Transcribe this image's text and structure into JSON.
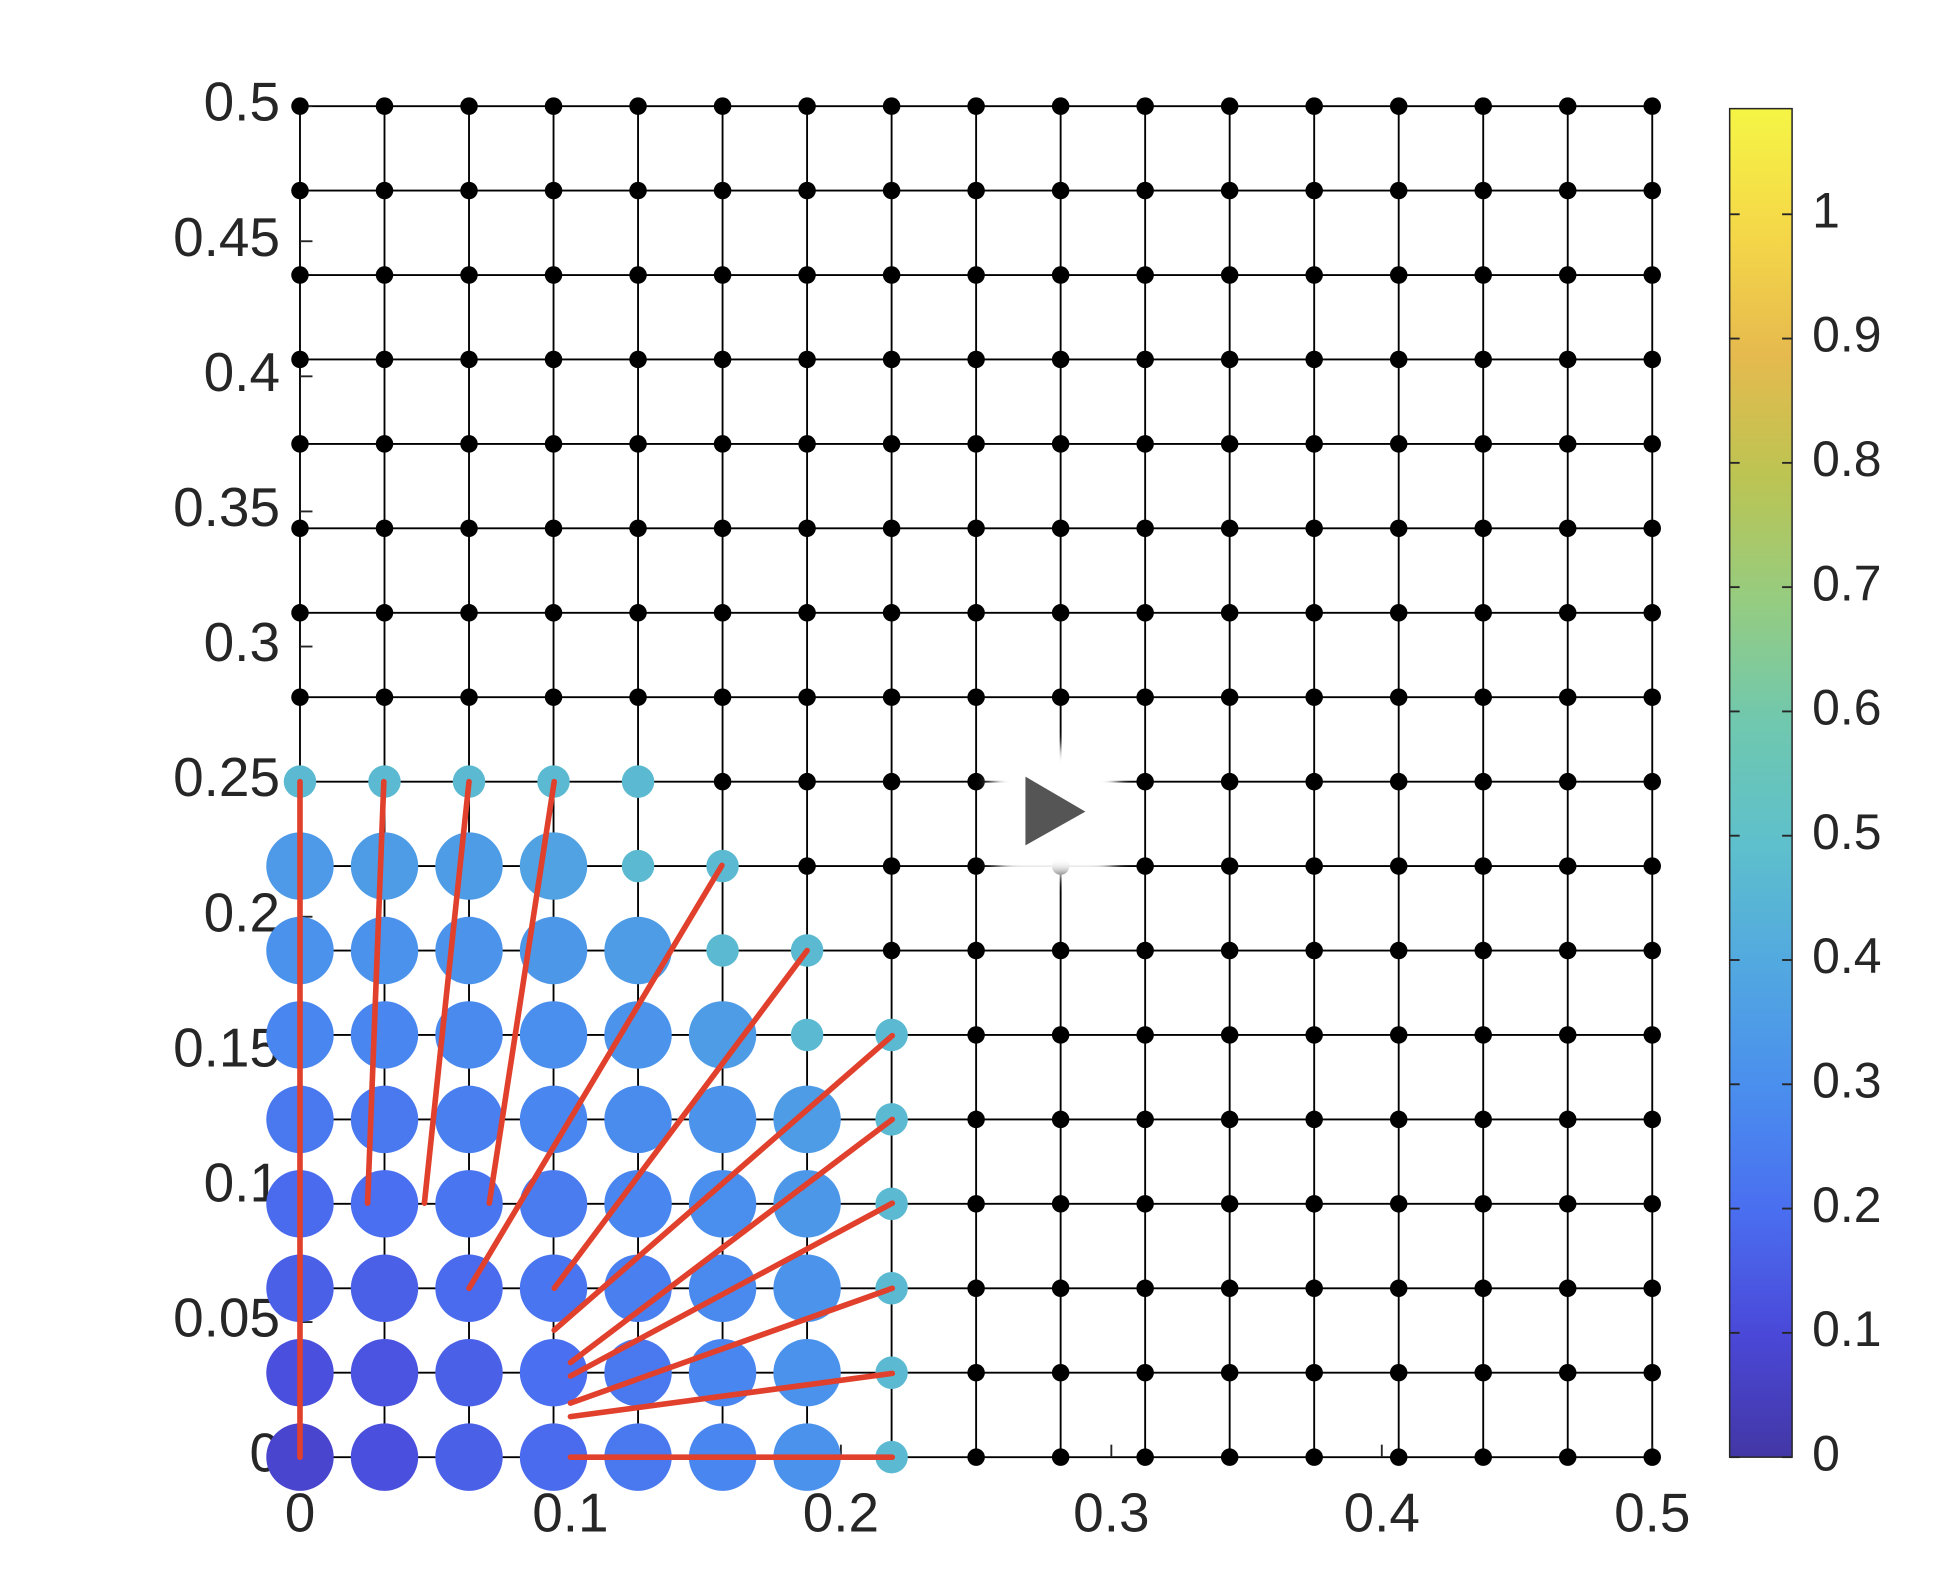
{
  "chart_data": {
    "type": "scatter",
    "xlim": [
      0,
      0.5
    ],
    "ylim": [
      0,
      0.5
    ],
    "xticks": [
      0,
      0.1,
      0.2,
      0.3,
      0.4,
      0.5
    ],
    "yticks": [
      0,
      0.05,
      0.1,
      0.15,
      0.2,
      0.25,
      0.3,
      0.35,
      0.4,
      0.45,
      0.5
    ],
    "mesh": {
      "x": [
        0,
        0.03125,
        0.0625,
        0.09375,
        0.125,
        0.15625,
        0.1875,
        0.21875,
        0.25,
        0.28125,
        0.3125,
        0.34375,
        0.375,
        0.40625,
        0.4375,
        0.46875,
        0.5
      ],
      "y": [
        0,
        0.03125,
        0.0625,
        0.09375,
        0.125,
        0.15625,
        0.1875,
        0.21875,
        0.25,
        0.28125,
        0.3125,
        0.34375,
        0.375,
        0.40625,
        0.4375,
        0.46875,
        0.5
      ],
      "color": "#000000"
    },
    "series": [
      {
        "x": [
          0,
          0.03125,
          0.0625,
          0.09375,
          0.125,
          0.15625,
          0.1875,
          0,
          0.03125,
          0.0625,
          0.09375,
          0.125,
          0.15625,
          0.1875,
          0,
          0.03125,
          0.0625,
          0.09375,
          0.125,
          0.15625,
          0.1875,
          0,
          0.03125,
          0.0625,
          0.09375,
          0.125,
          0.15625,
          0.1875,
          0,
          0.03125,
          0.0625,
          0.09375,
          0.125,
          0.15625,
          0.1875,
          0,
          0.03125,
          0.0625,
          0.09375,
          0.125,
          0.15625,
          0,
          0.03125,
          0.0625,
          0.09375,
          0.125,
          0,
          0.03125,
          0.0625,
          0.09375
        ],
        "y": [
          0,
          0,
          0,
          0,
          0,
          0,
          0,
          0.03125,
          0.03125,
          0.03125,
          0.03125,
          0.03125,
          0.03125,
          0.03125,
          0.0625,
          0.0625,
          0.0625,
          0.0625,
          0.0625,
          0.0625,
          0.0625,
          0.09375,
          0.09375,
          0.09375,
          0.09375,
          0.09375,
          0.09375,
          0.09375,
          0.125,
          0.125,
          0.125,
          0.125,
          0.125,
          0.125,
          0.125,
          0.15625,
          0.15625,
          0.15625,
          0.15625,
          0.15625,
          0.15625,
          0.1875,
          0.1875,
          0.1875,
          0.1875,
          0.1875,
          0.21875,
          0.21875,
          0.21875,
          0.21875
        ],
        "values": [
          0.08,
          0.12,
          0.16,
          0.19,
          0.23,
          0.27,
          0.31,
          0.12,
          0.13,
          0.16,
          0.2,
          0.23,
          0.27,
          0.31,
          0.16,
          0.16,
          0.19,
          0.22,
          0.25,
          0.28,
          0.32,
          0.19,
          0.2,
          0.22,
          0.24,
          0.27,
          0.3,
          0.33,
          0.23,
          0.23,
          0.25,
          0.27,
          0.29,
          0.32,
          0.35,
          0.27,
          0.27,
          0.28,
          0.3,
          0.32,
          0.35,
          0.31,
          0.31,
          0.32,
          0.33,
          0.35,
          0.34,
          0.35,
          0.35,
          0.37
        ]
      },
      {
        "x": [
          0.21875,
          0.21875,
          0.21875,
          0.21875,
          0.21875,
          0.1875,
          0.21875,
          0.15625,
          0.1875,
          0.125,
          0.15625,
          0,
          0.03125,
          0.0625,
          0.09375,
          0.125
        ],
        "y": [
          0,
          0.03125,
          0.0625,
          0.09375,
          0.125,
          0.15625,
          0.15625,
          0.1875,
          0.1875,
          0.21875,
          0.21875,
          0.25,
          0.25,
          0.25,
          0.25,
          0.25
        ],
        "values": [
          0.47,
          0.47,
          0.47,
          0.47,
          0.47,
          0.47,
          0.47,
          0.47,
          0.47,
          0.47,
          0.47,
          0.47,
          0.47,
          0.47,
          0.47,
          0.47
        ]
      }
    ],
    "lines": [
      {
        "x": [
          0,
          0
        ],
        "y": [
          0,
          0.25
        ]
      },
      {
        "x": [
          0.025,
          0.031
        ],
        "y": [
          0.094,
          0.25
        ]
      },
      {
        "x": [
          0.046,
          0.0625
        ],
        "y": [
          0.094,
          0.25
        ]
      },
      {
        "x": [
          0.07,
          0.094
        ],
        "y": [
          0.094,
          0.25
        ]
      },
      {
        "x": [
          0.0625,
          0.156
        ],
        "y": [
          0.0625,
          0.219
        ]
      },
      {
        "x": [
          0.094,
          0.1875
        ],
        "y": [
          0.0625,
          0.1875
        ]
      },
      {
        "x": [
          0.094,
          0.219
        ],
        "y": [
          0.047,
          0.156
        ]
      },
      {
        "x": [
          0.1,
          0.219
        ],
        "y": [
          0.035,
          0.125
        ]
      },
      {
        "x": [
          0.1,
          0.219
        ],
        "y": [
          0.03,
          0.094
        ]
      },
      {
        "x": [
          0.1,
          0.219
        ],
        "y": [
          0.02,
          0.0625
        ]
      },
      {
        "x": [
          0.1,
          0.219
        ],
        "y": [
          0.015,
          0.031
        ]
      },
      {
        "x": [
          0.1,
          0.219
        ],
        "y": [
          0,
          0
        ]
      }
    ],
    "line_color": "#e0402c",
    "clim": [
      0,
      1.085
    ],
    "cticks": [
      0,
      0.1,
      0.2,
      0.3,
      0.4,
      0.5,
      0.6,
      0.7,
      0.8,
      0.9,
      1
    ],
    "colormap": [
      "#4337a5",
      "#4a48d8",
      "#4a6ef0",
      "#4a8eee",
      "#52a8e0",
      "#5ec0cc",
      "#70c8ae",
      "#96cc80",
      "#bcc452",
      "#e6ba4e",
      "#f5d848",
      "#f5f545"
    ]
  }
}
